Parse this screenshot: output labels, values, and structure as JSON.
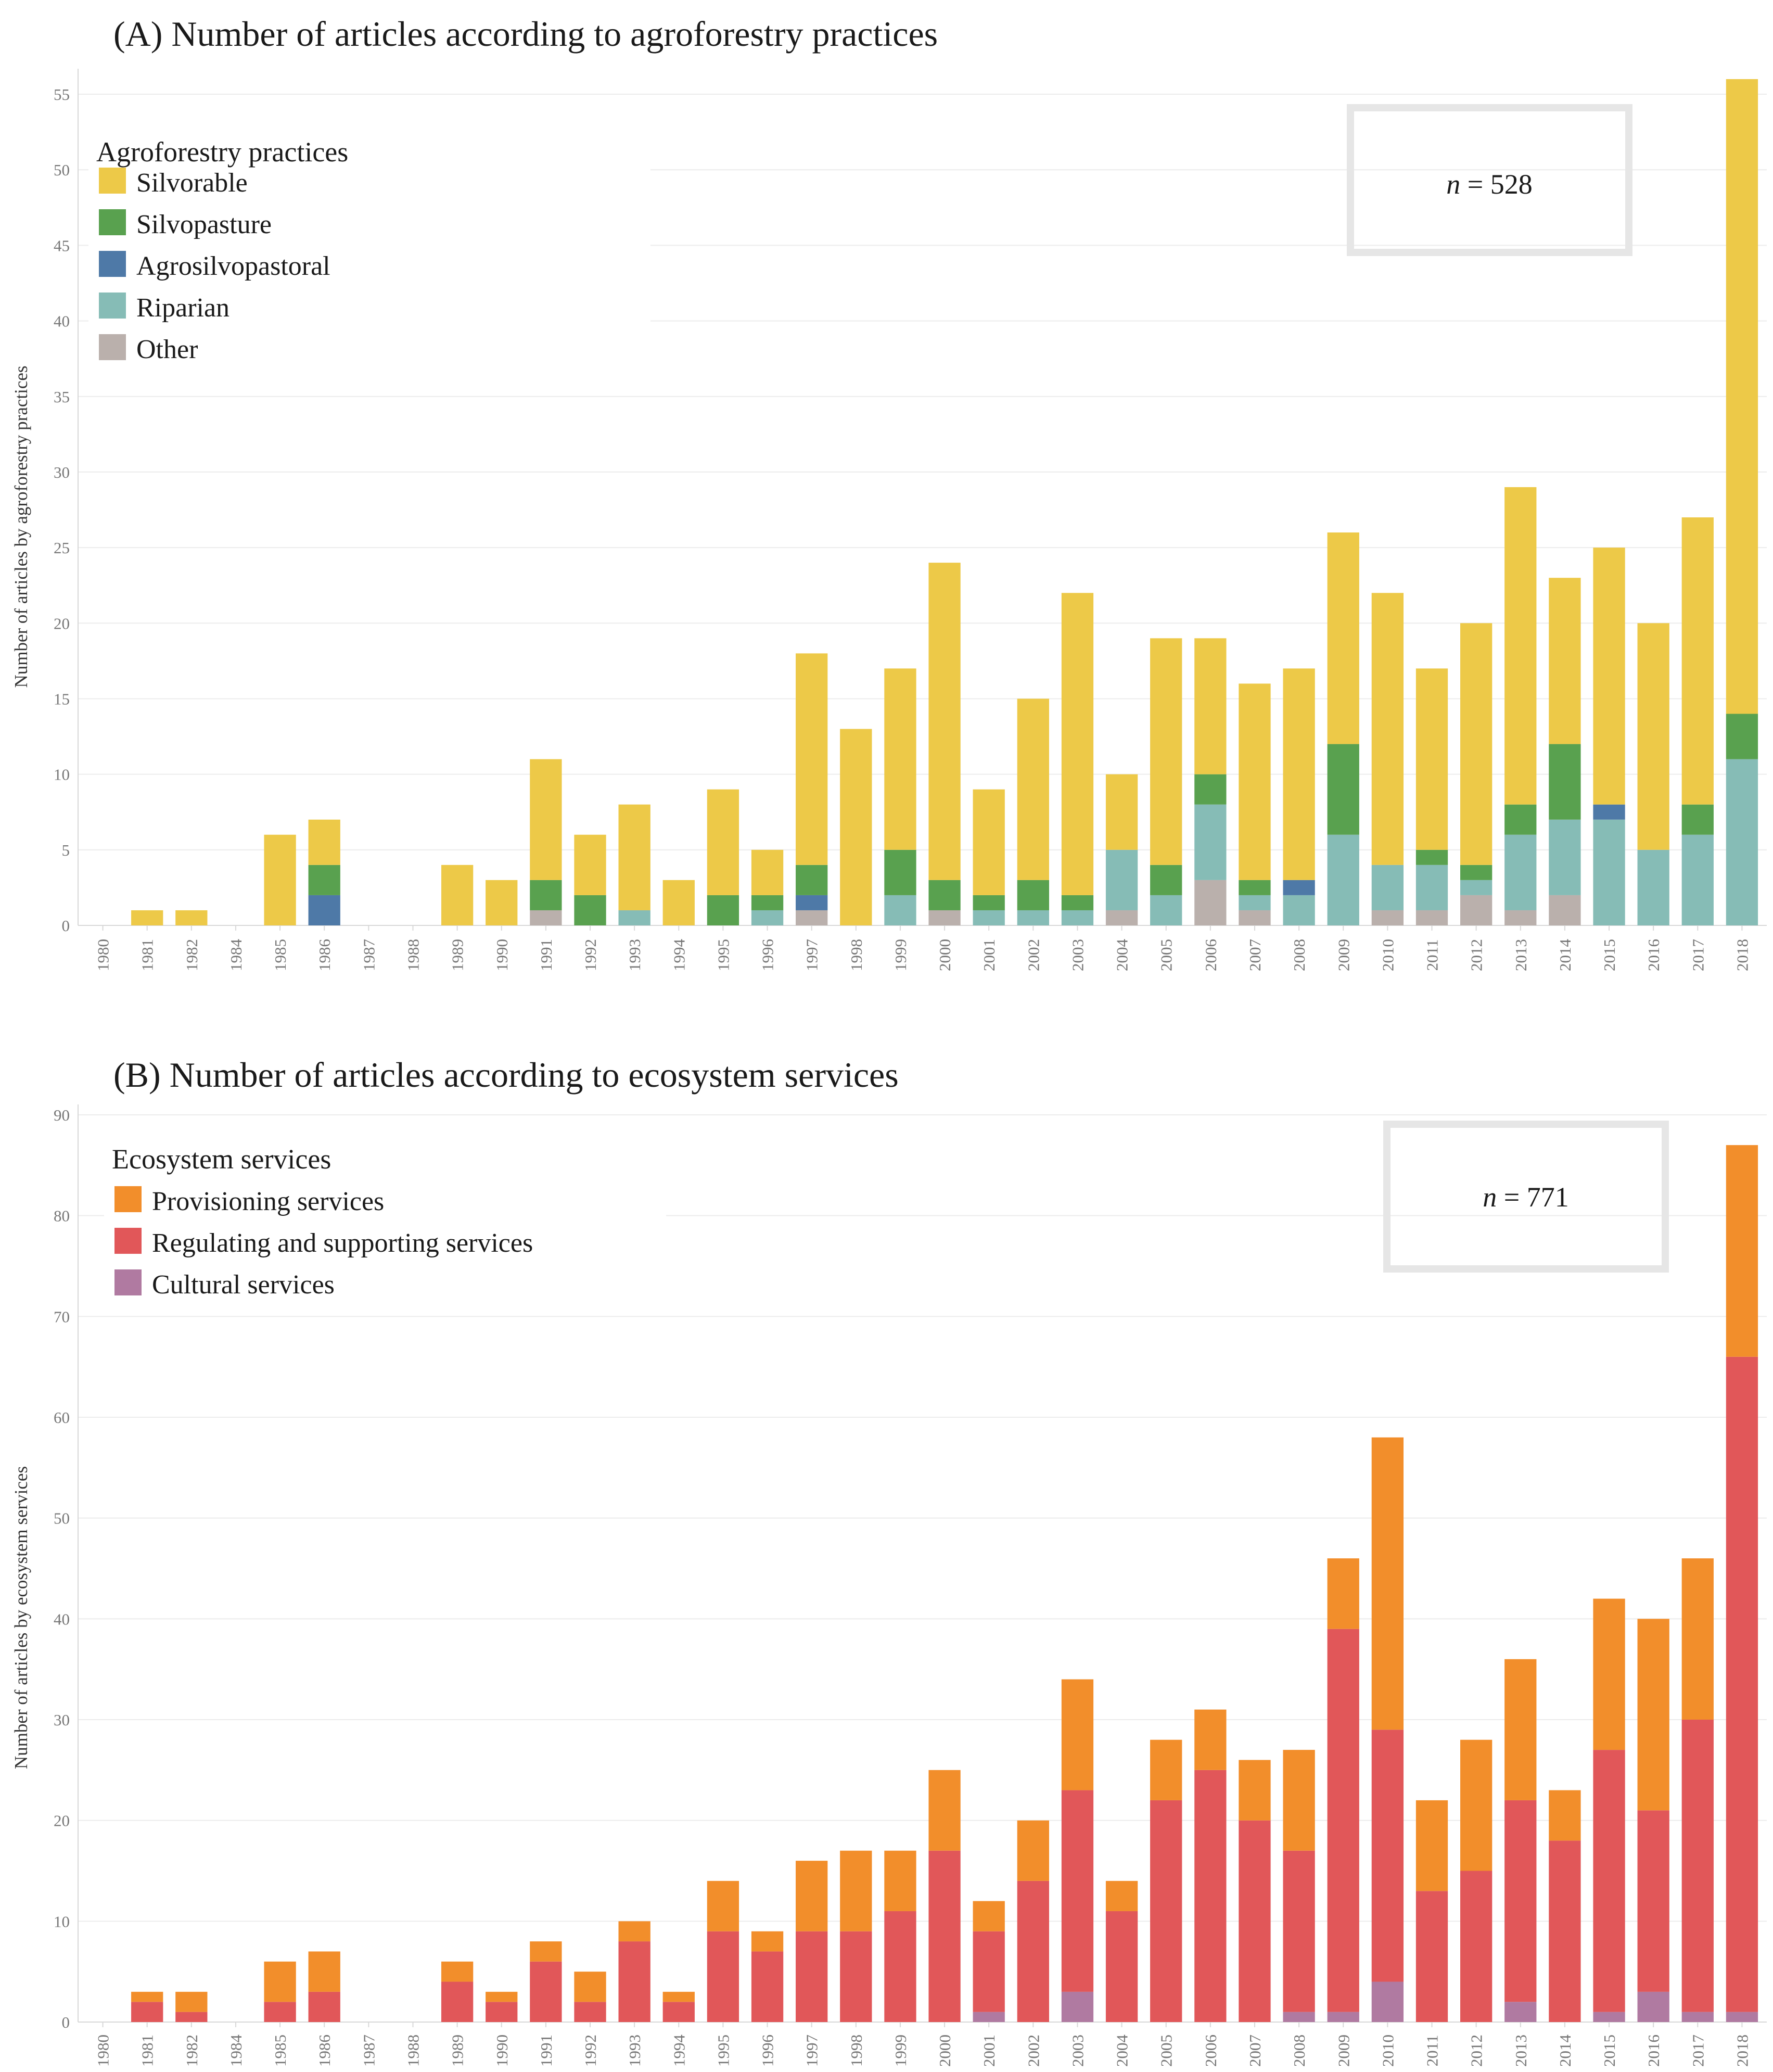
{
  "chart_data": [
    {
      "type": "bar",
      "stacked": true,
      "title": "(A)  Number of articles according to agroforestry practices",
      "ylabel": "Number of articles by agroforestry practices",
      "xlabel": "",
      "ylim": [
        0,
        56
      ],
      "yticks": [
        0,
        5,
        10,
        15,
        20,
        25,
        30,
        35,
        40,
        45,
        50,
        55
      ],
      "grid": true,
      "legend_title": "Agroforestry practices",
      "legend_position": "top-left",
      "annotation": {
        "prefix": "n",
        "text": " = 528"
      },
      "categories": [
        "1980",
        "1981",
        "1982",
        "1984",
        "1985",
        "1986",
        "1987",
        "1988",
        "1989",
        "1990",
        "1991",
        "1992",
        "1993",
        "1994",
        "1995",
        "1996",
        "1997",
        "1998",
        "1999",
        "2000",
        "2001",
        "2002",
        "2003",
        "2004",
        "2005",
        "2006",
        "2007",
        "2008",
        "2009",
        "2010",
        "2011",
        "2012",
        "2013",
        "2014",
        "2015",
        "2016",
        "2017",
        "2018"
      ],
      "series": [
        {
          "name": "Other",
          "color": "#bab0ac",
          "values": [
            0,
            0,
            0,
            0,
            0,
            0,
            0,
            0,
            0,
            0,
            1,
            0,
            0,
            0,
            0,
            0,
            1,
            0,
            0,
            1,
            0,
            0,
            0,
            1,
            0,
            3,
            1,
            0,
            0,
            1,
            1,
            2,
            1,
            2,
            0,
            0,
            0,
            0
          ]
        },
        {
          "name": "Riparian",
          "color": "#86bcb6",
          "values": [
            0,
            0,
            0,
            0,
            0,
            0,
            0,
            0,
            0,
            0,
            0,
            0,
            1,
            0,
            0,
            1,
            0,
            0,
            2,
            0,
            1,
            1,
            1,
            4,
            2,
            5,
            1,
            2,
            6,
            3,
            3,
            1,
            5,
            5,
            7,
            5,
            6,
            11
          ]
        },
        {
          "name": "Agrosilvopastoral",
          "color": "#4e79a7",
          "values": [
            0,
            0,
            0,
            0,
            0,
            2,
            0,
            0,
            0,
            0,
            0,
            0,
            0,
            0,
            0,
            0,
            1,
            0,
            0,
            0,
            0,
            0,
            0,
            0,
            0,
            0,
            0,
            1,
            0,
            0,
            0,
            0,
            0,
            0,
            1,
            0,
            0,
            0
          ]
        },
        {
          "name": "Silvopasture",
          "color": "#59a14f",
          "values": [
            0,
            0,
            0,
            0,
            0,
            2,
            0,
            0,
            0,
            0,
            2,
            2,
            0,
            0,
            2,
            1,
            2,
            0,
            3,
            2,
            1,
            2,
            1,
            0,
            2,
            2,
            1,
            0,
            6,
            0,
            1,
            1,
            2,
            5,
            0,
            0,
            2,
            3
          ]
        },
        {
          "name": "Silvorable",
          "color": "#edc948",
          "values": [
            0,
            1,
            1,
            0,
            6,
            3,
            0,
            0,
            4,
            3,
            8,
            4,
            7,
            3,
            7,
            3,
            14,
            13,
            12,
            21,
            7,
            12,
            20,
            5,
            15,
            9,
            13,
            14,
            14,
            18,
            12,
            16,
            21,
            11,
            17,
            15,
            19,
            42
          ]
        }
      ],
      "legend_order": [
        "Silvorable",
        "Silvopasture",
        "Agrosilvopastoral",
        "Riparian",
        "Other"
      ]
    },
    {
      "type": "bar",
      "stacked": true,
      "title": "(B)  Number of articles according to ecosystem services",
      "ylabel": "Number of articles by ecosystem services",
      "xlabel": "",
      "ylim": [
        0,
        90
      ],
      "yticks": [
        0,
        10,
        20,
        30,
        40,
        50,
        60,
        70,
        80,
        90
      ],
      "grid": true,
      "legend_title": "Ecosystem services",
      "legend_position": "top-left",
      "annotation": {
        "prefix": "n",
        "text": " = 771"
      },
      "categories": [
        "1980",
        "1981",
        "1982",
        "1984",
        "1985",
        "1986",
        "1987",
        "1988",
        "1989",
        "1990",
        "1991",
        "1992",
        "1993",
        "1994",
        "1995",
        "1996",
        "1997",
        "1998",
        "1999",
        "2000",
        "2001",
        "2002",
        "2003",
        "2004",
        "2005",
        "2006",
        "2007",
        "2008",
        "2009",
        "2010",
        "2011",
        "2012",
        "2013",
        "2014",
        "2015",
        "2016",
        "2017",
        "2018"
      ],
      "series": [
        {
          "name": "Cultural services",
          "color": "#b07aa1",
          "values": [
            0,
            0,
            0,
            0,
            0,
            0,
            0,
            0,
            0,
            0,
            0,
            0,
            0,
            0,
            0,
            0,
            0,
            0,
            0,
            0,
            1,
            0,
            3,
            0,
            0,
            0,
            0,
            1,
            1,
            4,
            0,
            0,
            2,
            0,
            1,
            3,
            1,
            1
          ]
        },
        {
          "name": "Regulating and supporting services",
          "color": "#e15759",
          "values": [
            0,
            2,
            1,
            0,
            2,
            3,
            0,
            0,
            4,
            2,
            6,
            2,
            8,
            2,
            9,
            7,
            9,
            9,
            11,
            17,
            8,
            14,
            20,
            11,
            22,
            25,
            20,
            16,
            38,
            25,
            13,
            15,
            20,
            18,
            26,
            18,
            29,
            65
          ]
        },
        {
          "name": "Provisioning services",
          "color": "#f28e2b",
          "values": [
            0,
            1,
            2,
            0,
            4,
            4,
            0,
            0,
            2,
            1,
            2,
            3,
            2,
            1,
            5,
            2,
            7,
            8,
            6,
            8,
            3,
            6,
            11,
            3,
            6,
            6,
            6,
            10,
            7,
            29,
            9,
            13,
            14,
            5,
            15,
            19,
            16,
            21
          ]
        }
      ],
      "legend_order": [
        "Provisioning services",
        "Regulating and supporting services",
        "Cultural services"
      ]
    }
  ]
}
